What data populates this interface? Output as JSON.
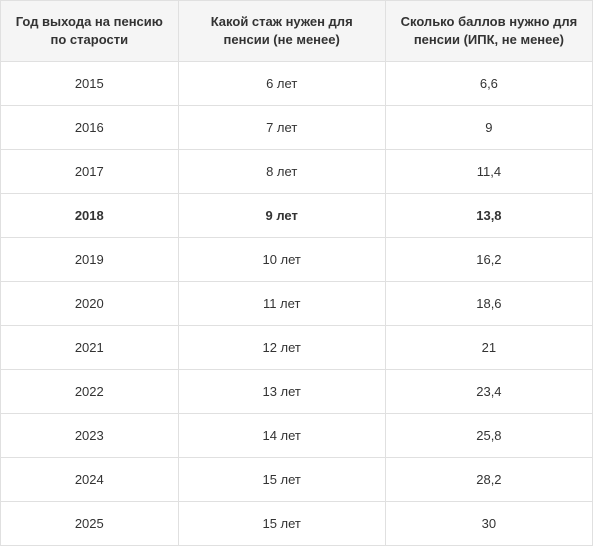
{
  "table": {
    "columns": [
      "Год выхода на пенсию по старости",
      "Какой стаж нужен для пенсии (не менее)",
      "Сколько баллов нужно для пенсии (ИПК, не менее)"
    ],
    "rows": [
      {
        "year": "2015",
        "experience": "6 лет",
        "points": "6,6",
        "highlighted": false
      },
      {
        "year": "2016",
        "experience": "7 лет",
        "points": "9",
        "highlighted": false
      },
      {
        "year": "2017",
        "experience": "8 лет",
        "points": "11,4",
        "highlighted": false
      },
      {
        "year": "2018",
        "experience": "9 лет",
        "points": "13,8",
        "highlighted": true
      },
      {
        "year": "2019",
        "experience": "10 лет",
        "points": "16,2",
        "highlighted": false
      },
      {
        "year": "2020",
        "experience": "11 лет",
        "points": "18,6",
        "highlighted": false
      },
      {
        "year": "2021",
        "experience": "12 лет",
        "points": "21",
        "highlighted": false
      },
      {
        "year": "2022",
        "experience": "13 лет",
        "points": "23,4",
        "highlighted": false
      },
      {
        "year": "2023",
        "experience": "14 лет",
        "points": "25,8",
        "highlighted": false
      },
      {
        "year": "2024",
        "experience": "15 лет",
        "points": "28,2",
        "highlighted": false
      },
      {
        "year": "2025",
        "experience": "15 лет",
        "points": "30",
        "highlighted": false
      }
    ],
    "style": {
      "header_bg": "#f5f5f5",
      "row_bg": "#ffffff",
      "border_color": "#e0e0e0",
      "text_color": "#333333",
      "header_fontsize": 13,
      "cell_fontsize": 13,
      "header_fontweight": "bold",
      "highlighted_fontweight": "bold"
    }
  }
}
